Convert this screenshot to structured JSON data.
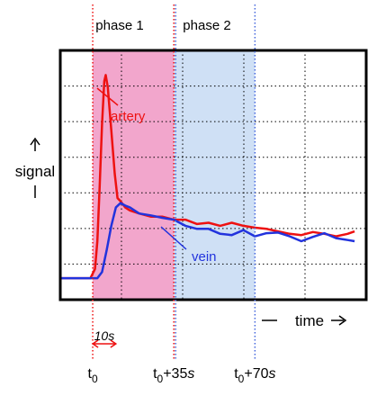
{
  "chart_data": {
    "type": "line",
    "title": "",
    "xlabel": "time",
    "ylabel": "signal",
    "xlim": [
      -14,
      118
    ],
    "ylim": [
      -0.35,
      3.7
    ],
    "grid": true,
    "phases": [
      {
        "label": "phase 1",
        "start": 0,
        "end": 35,
        "color": "#f2a6cc"
      },
      {
        "label": "phase 2",
        "start": 35,
        "end": 70,
        "color": "#cfe0f5"
      }
    ],
    "time_markers": [
      {
        "label_base": "t",
        "label_sub": "0",
        "label_suffix": "",
        "x": 0
      },
      {
        "label_base": "t",
        "label_sub": "0",
        "label_suffix": "+35s",
        "x": 35
      },
      {
        "label_base": "t",
        "label_sub": "0",
        "label_suffix": "+70s",
        "x": 70
      }
    ],
    "span_annotation": {
      "label": "10s",
      "from": 0,
      "to": 10
    },
    "series": [
      {
        "name": "artery",
        "color": "#ee1111",
        "points": [
          [
            -14,
            0
          ],
          [
            -1,
            0
          ],
          [
            1,
            0.15
          ],
          [
            2,
            0.6
          ],
          [
            3,
            1.5
          ],
          [
            4,
            2.5
          ],
          [
            5,
            3.2
          ],
          [
            5.6,
            3.3
          ],
          [
            6.5,
            3.1
          ],
          [
            8,
            2.4
          ],
          [
            9.5,
            1.7
          ],
          [
            10.7,
            1.3
          ],
          [
            12,
            1.25
          ],
          [
            14,
            1.15
          ],
          [
            16,
            1.1
          ],
          [
            20,
            1.05
          ],
          [
            25,
            1.0
          ],
          [
            30,
            1.0
          ],
          [
            35,
            0.95
          ],
          [
            40,
            0.95
          ],
          [
            45,
            0.88
          ],
          [
            50,
            0.9
          ],
          [
            55,
            0.85
          ],
          [
            60,
            0.9
          ],
          [
            65,
            0.85
          ],
          [
            70,
            0.82
          ],
          [
            75,
            0.8
          ],
          [
            80,
            0.76
          ],
          [
            85,
            0.72
          ],
          [
            90,
            0.7
          ],
          [
            95,
            0.75
          ],
          [
            100,
            0.72
          ],
          [
            105,
            0.68
          ],
          [
            110,
            0.72
          ],
          [
            113,
            0.76
          ]
        ]
      },
      {
        "name": "vein",
        "color": "#2233dd",
        "points": [
          [
            -14,
            0
          ],
          [
            2,
            0
          ],
          [
            4,
            0.1
          ],
          [
            6,
            0.45
          ],
          [
            8,
            0.85
          ],
          [
            10,
            1.15
          ],
          [
            12,
            1.22
          ],
          [
            14,
            1.18
          ],
          [
            16,
            1.15
          ],
          [
            20,
            1.05
          ],
          [
            25,
            1.02
          ],
          [
            30,
            0.98
          ],
          [
            35,
            0.95
          ],
          [
            40,
            0.85
          ],
          [
            45,
            0.8
          ],
          [
            50,
            0.8
          ],
          [
            55,
            0.72
          ],
          [
            60,
            0.7
          ],
          [
            65,
            0.78
          ],
          [
            70,
            0.68
          ],
          [
            75,
            0.73
          ],
          [
            80,
            0.74
          ],
          [
            85,
            0.68
          ],
          [
            90,
            0.6
          ],
          [
            95,
            0.67
          ],
          [
            100,
            0.73
          ],
          [
            105,
            0.65
          ],
          [
            110,
            0.62
          ],
          [
            113,
            0.6
          ]
        ]
      }
    ]
  }
}
